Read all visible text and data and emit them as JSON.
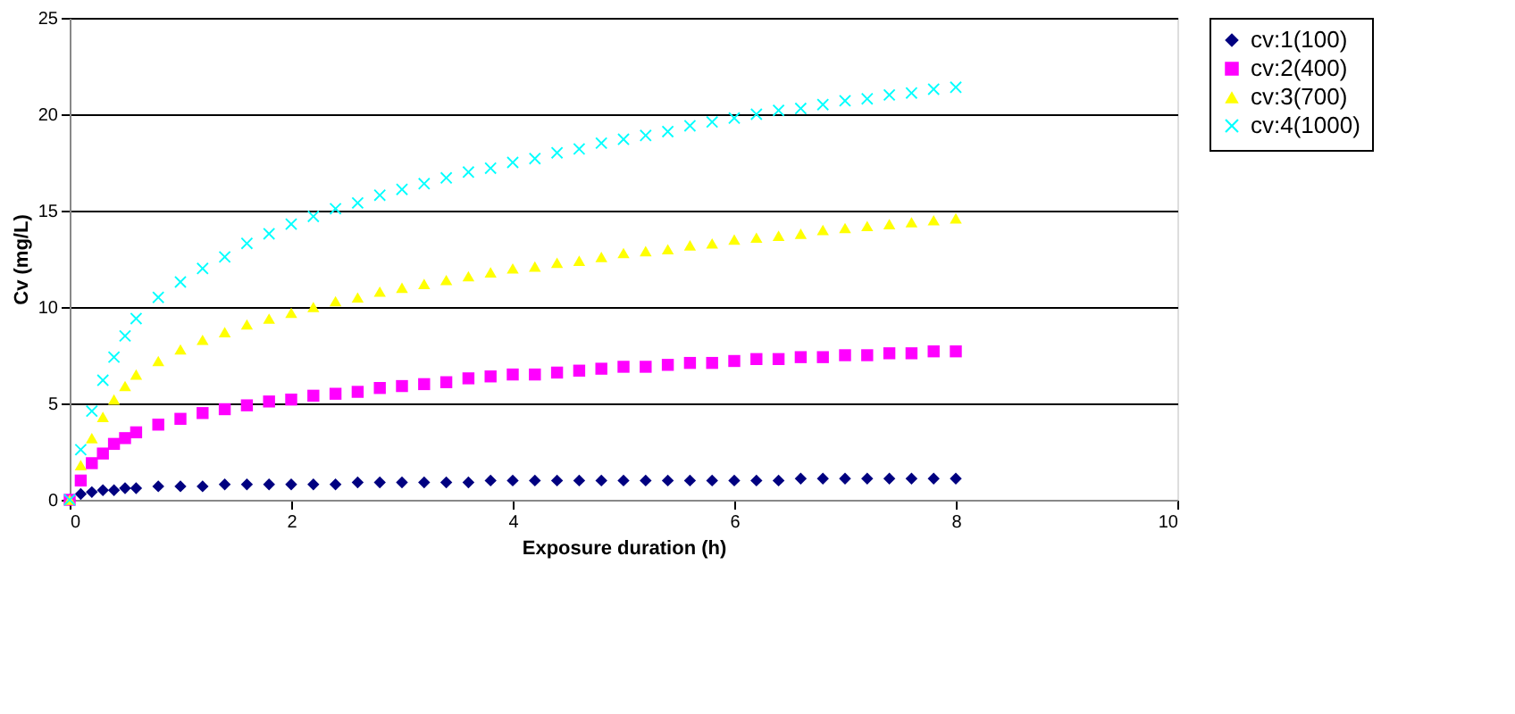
{
  "chart_data": {
    "type": "scatter",
    "xlabel": "Exposure duration (h)",
    "ylabel": "Cv (mg/L)",
    "x": [
      0,
      0.1,
      0.2,
      0.3,
      0.4,
      0.5,
      0.6,
      0.8,
      1.0,
      1.2,
      1.4,
      1.6,
      1.8,
      2.0,
      2.2,
      2.4,
      2.6,
      2.8,
      3.0,
      3.2,
      3.4,
      3.6,
      3.8,
      4.0,
      4.2,
      4.4,
      4.6,
      4.8,
      5.0,
      5.2,
      5.4,
      5.6,
      5.8,
      6.0,
      6.2,
      6.4,
      6.6,
      6.8,
      7.0,
      7.2,
      7.4,
      7.6,
      7.8,
      8.0
    ],
    "series": [
      {
        "name": "cv:1(100)",
        "color": "#000080",
        "marker": "diamond",
        "values": [
          0,
          0.3,
          0.4,
          0.5,
          0.5,
          0.6,
          0.6,
          0.7,
          0.7,
          0.7,
          0.8,
          0.8,
          0.8,
          0.8,
          0.8,
          0.8,
          0.9,
          0.9,
          0.9,
          0.9,
          0.9,
          0.9,
          1.0,
          1.0,
          1.0,
          1.0,
          1.0,
          1.0,
          1.0,
          1.0,
          1.0,
          1.0,
          1.0,
          1.0,
          1.0,
          1.0,
          1.1,
          1.1,
          1.1,
          1.1,
          1.1,
          1.1,
          1.1,
          1.1
        ]
      },
      {
        "name": "cv:2(400)",
        "color": "#ff00ff",
        "marker": "square",
        "values": [
          0,
          1.0,
          1.9,
          2.4,
          2.9,
          3.2,
          3.5,
          3.9,
          4.2,
          4.5,
          4.7,
          4.9,
          5.1,
          5.2,
          5.4,
          5.5,
          5.6,
          5.8,
          5.9,
          6.0,
          6.1,
          6.3,
          6.4,
          6.5,
          6.5,
          6.6,
          6.7,
          6.8,
          6.9,
          6.9,
          7.0,
          7.1,
          7.1,
          7.2,
          7.3,
          7.3,
          7.4,
          7.4,
          7.5,
          7.5,
          7.6,
          7.6,
          7.7,
          7.7
        ]
      },
      {
        "name": "cv:3(700)",
        "color": "#ffff00",
        "marker": "triangle",
        "values": [
          0,
          1.8,
          3.2,
          4.3,
          5.2,
          5.9,
          6.5,
          7.2,
          7.8,
          8.3,
          8.7,
          9.1,
          9.4,
          9.7,
          10.0,
          10.3,
          10.5,
          10.8,
          11.0,
          11.2,
          11.4,
          11.6,
          11.8,
          12.0,
          12.1,
          12.3,
          12.4,
          12.6,
          12.8,
          12.9,
          13.0,
          13.2,
          13.3,
          13.5,
          13.6,
          13.7,
          13.8,
          14.0,
          14.1,
          14.2,
          14.3,
          14.4,
          14.5,
          14.6
        ]
      },
      {
        "name": "cv:4(1000)",
        "color": "#00ffff",
        "marker": "cross",
        "values": [
          0,
          2.6,
          4.6,
          6.2,
          7.4,
          8.5,
          9.4,
          10.5,
          11.3,
          12.0,
          12.6,
          13.3,
          13.8,
          14.3,
          14.7,
          15.1,
          15.4,
          15.8,
          16.1,
          16.4,
          16.7,
          17.0,
          17.2,
          17.5,
          17.7,
          18.0,
          18.2,
          18.5,
          18.7,
          18.9,
          19.1,
          19.4,
          19.6,
          19.8,
          20.0,
          20.2,
          20.3,
          20.5,
          20.7,
          20.8,
          21.0,
          21.1,
          21.3,
          21.4
        ]
      }
    ],
    "xlim": [
      0,
      10
    ],
    "xticks": [
      0,
      2,
      4,
      6,
      8,
      10
    ],
    "ylim": [
      0,
      25
    ],
    "yticks": [
      0,
      5,
      10,
      15,
      20,
      25
    ],
    "grid": "y",
    "legend": "right"
  }
}
